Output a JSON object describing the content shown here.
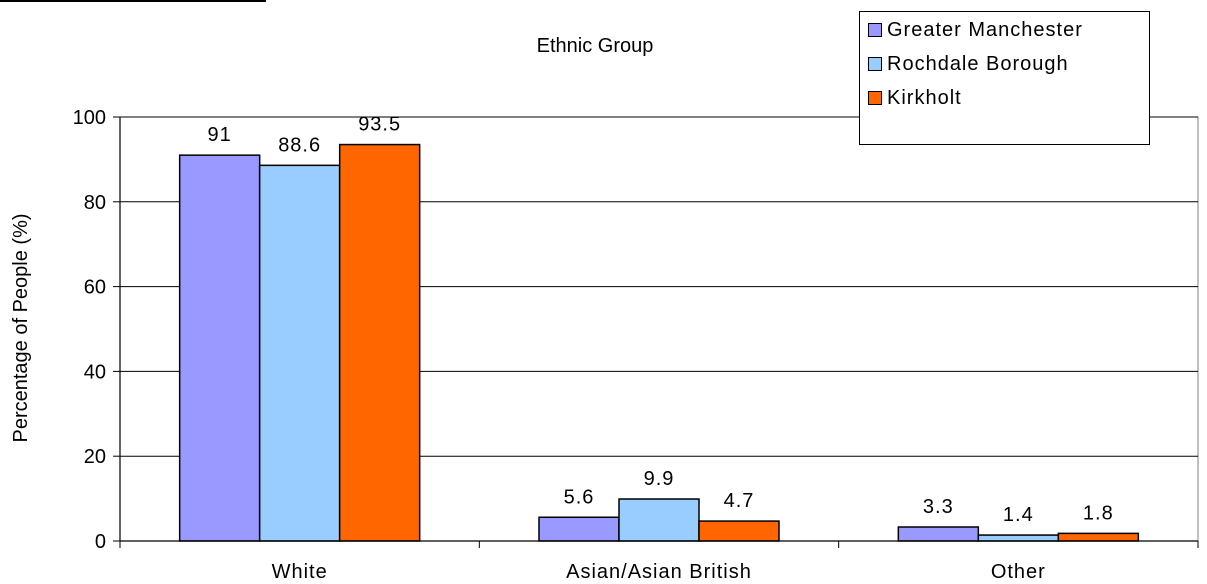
{
  "chart_data": {
    "type": "bar",
    "title": "Ethnic Group",
    "ylabel": "Percentage of People (%)",
    "xlabel": "",
    "categories": [
      "White",
      "Asian/Asian British",
      "Other"
    ],
    "series": [
      {
        "name": "Greater Manchester",
        "values": [
          91,
          5.6,
          3.3
        ],
        "color": "#9999ff"
      },
      {
        "name": "Rochdale Borough",
        "values": [
          88.6,
          9.9,
          1.4
        ],
        "color": "#99ccff"
      },
      {
        "name": "Kirkholt",
        "values": [
          93.5,
          4.7,
          1.8
        ],
        "color": "#ff6600"
      }
    ],
    "ylim": [
      0,
      100
    ],
    "yticks": [
      0,
      20,
      40,
      60,
      80,
      100
    ],
    "data_labels": [
      [
        "91",
        "88.6",
        "93.5"
      ],
      [
        "5.6",
        "9.9",
        "4.7"
      ],
      [
        "3.3",
        "1.4",
        "1.8"
      ]
    ],
    "grid": true,
    "legend_position": "top-right"
  }
}
